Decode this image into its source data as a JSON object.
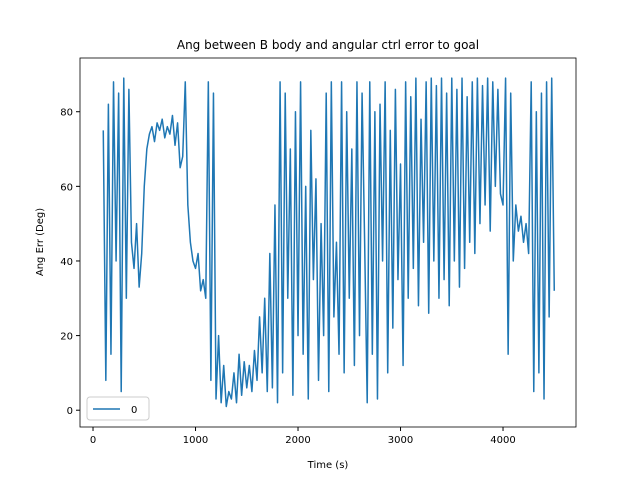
{
  "chart_data": {
    "type": "line",
    "title": "Ang between B body and angular ctrl error to goal",
    "x_label": "Time (s)",
    "y_label": "Ang Err (Deg)",
    "x": [
      100,
      125,
      150,
      175,
      200,
      225,
      250,
      275,
      300,
      325,
      350,
      375,
      400,
      425,
      450,
      475,
      500,
      525,
      550,
      575,
      600,
      625,
      650,
      675,
      700,
      725,
      750,
      775,
      800,
      825,
      850,
      875,
      900,
      925,
      950,
      975,
      1000,
      1025,
      1050,
      1075,
      1100,
      1125,
      1150,
      1175,
      1200,
      1225,
      1250,
      1275,
      1300,
      1325,
      1350,
      1375,
      1400,
      1425,
      1450,
      1475,
      1500,
      1525,
      1550,
      1575,
      1600,
      1625,
      1650,
      1675,
      1700,
      1725,
      1750,
      1775,
      1800,
      1825,
      1850,
      1875,
      1900,
      1925,
      1950,
      1975,
      2000,
      2025,
      2050,
      2075,
      2100,
      2125,
      2150,
      2175,
      2200,
      2225,
      2250,
      2275,
      2300,
      2325,
      2350,
      2375,
      2400,
      2425,
      2450,
      2475,
      2500,
      2525,
      2550,
      2575,
      2600,
      2625,
      2650,
      2675,
      2700,
      2725,
      2750,
      2775,
      2800,
      2825,
      2850,
      2875,
      2900,
      2925,
      2950,
      2975,
      3000,
      3025,
      3050,
      3075,
      3100,
      3125,
      3150,
      3175,
      3200,
      3225,
      3250,
      3275,
      3300,
      3325,
      3350,
      3375,
      3400,
      3425,
      3450,
      3475,
      3500,
      3525,
      3550,
      3575,
      3600,
      3625,
      3650,
      3675,
      3700,
      3725,
      3750,
      3775,
      3800,
      3825,
      3850,
      3875,
      3900,
      3925,
      3950,
      3975,
      4000,
      4025,
      4050,
      4075,
      4100,
      4125,
      4150,
      4175,
      4200,
      4225,
      4250,
      4275,
      4300,
      4325,
      4350,
      4375,
      4400,
      4425,
      4450,
      4475,
      4500
    ],
    "series": [
      {
        "name": "0",
        "color": "#1f77b4",
        "values": [
          75,
          8,
          82,
          15,
          88,
          40,
          85,
          5,
          89,
          30,
          86,
          45,
          38,
          50,
          33,
          42,
          60,
          70,
          74,
          76,
          72,
          77,
          75,
          78,
          73,
          76,
          74,
          79,
          71,
          77,
          65,
          68,
          88,
          55,
          45,
          40,
          38,
          42,
          32,
          35,
          30,
          88,
          8,
          85,
          3,
          20,
          2,
          12,
          1,
          5,
          3,
          10,
          2,
          15,
          4,
          13,
          6,
          12,
          5,
          16,
          8,
          25,
          10,
          30,
          5,
          42,
          6,
          55,
          2,
          88,
          10,
          85,
          30,
          70,
          4,
          80,
          20,
          88,
          15,
          60,
          3,
          75,
          35,
          62,
          8,
          50,
          20,
          85,
          5,
          88,
          25,
          45,
          15,
          88,
          10,
          80,
          30,
          70,
          12,
          88,
          20,
          85,
          45,
          2,
          88,
          15,
          80,
          3,
          82,
          40,
          88,
          10,
          75,
          22,
          86,
          35,
          66,
          12,
          88,
          30,
          84,
          38,
          89,
          28,
          78,
          45,
          88,
          26,
          89,
          40,
          87,
          30,
          89,
          35,
          85,
          28,
          89,
          40,
          86,
          33,
          89,
          38,
          84,
          45,
          88,
          42,
          89,
          50,
          87,
          55,
          89,
          48,
          88,
          60,
          86,
          58,
          55,
          89,
          15,
          85,
          40,
          55,
          48,
          52,
          45,
          50,
          42,
          88,
          5,
          80,
          10,
          85,
          3,
          88,
          25,
          89,
          32
        ]
      }
    ],
    "xlim": [
      -127,
      4712
    ],
    "ylim": [
      -4.5,
      94.4
    ],
    "xticks": [
      0,
      1000,
      2000,
      3000,
      4000
    ],
    "yticks": [
      0,
      20,
      40,
      60,
      80
    ],
    "legend": "lower left"
  }
}
